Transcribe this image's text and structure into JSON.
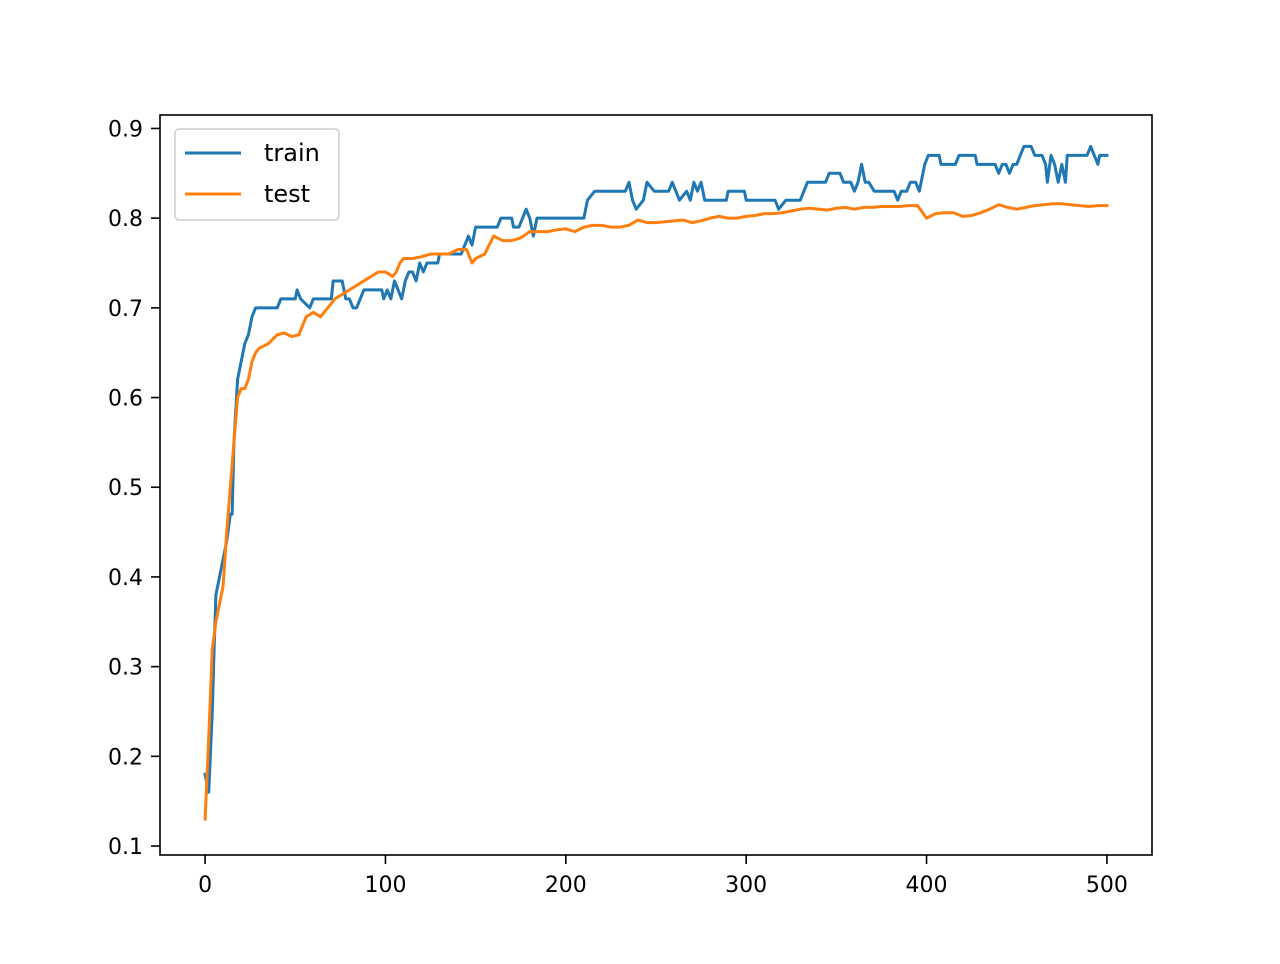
{
  "chart_data": {
    "type": "line",
    "title": "",
    "xlabel": "",
    "ylabel": "",
    "xlim": [
      -25,
      525
    ],
    "ylim": [
      0.09,
      0.915
    ],
    "x_ticks": [
      0,
      100,
      200,
      300,
      400,
      500
    ],
    "y_ticks": [
      0.1,
      0.2,
      0.3,
      0.4,
      0.5,
      0.6,
      0.7,
      0.8,
      0.9
    ],
    "x_tick_labels": [
      "0",
      "100",
      "200",
      "300",
      "400",
      "500"
    ],
    "y_tick_labels": [
      "0.1",
      "0.2",
      "0.3",
      "0.4",
      "0.5",
      "0.6",
      "0.7",
      "0.8",
      "0.9"
    ],
    "grid": false,
    "legend": {
      "position": "top-left"
    },
    "series": [
      {
        "name": "train",
        "color": "#1f77b4",
        "points": [
          [
            0,
            0.18
          ],
          [
            2,
            0.16
          ],
          [
            4,
            0.25
          ],
          [
            5,
            0.32
          ],
          [
            6,
            0.38
          ],
          [
            8,
            0.4
          ],
          [
            10,
            0.42
          ],
          [
            12,
            0.44
          ],
          [
            14,
            0.47
          ],
          [
            15,
            0.47
          ],
          [
            16,
            0.55
          ],
          [
            18,
            0.62
          ],
          [
            20,
            0.64
          ],
          [
            22,
            0.66
          ],
          [
            24,
            0.67
          ],
          [
            26,
            0.69
          ],
          [
            28,
            0.7
          ],
          [
            40,
            0.7
          ],
          [
            42,
            0.71
          ],
          [
            50,
            0.71
          ],
          [
            51,
            0.72
          ],
          [
            53,
            0.71
          ],
          [
            58,
            0.7
          ],
          [
            60,
            0.71
          ],
          [
            70,
            0.71
          ],
          [
            71,
            0.73
          ],
          [
            76,
            0.73
          ],
          [
            78,
            0.71
          ],
          [
            80,
            0.71
          ],
          [
            82,
            0.7
          ],
          [
            84,
            0.7
          ],
          [
            86,
            0.71
          ],
          [
            88,
            0.72
          ],
          [
            98,
            0.72
          ],
          [
            99,
            0.71
          ],
          [
            101,
            0.72
          ],
          [
            103,
            0.71
          ],
          [
            105,
            0.73
          ],
          [
            107,
            0.72
          ],
          [
            109,
            0.71
          ],
          [
            111,
            0.73
          ],
          [
            113,
            0.74
          ],
          [
            115,
            0.74
          ],
          [
            117,
            0.73
          ],
          [
            119,
            0.75
          ],
          [
            121,
            0.74
          ],
          [
            123,
            0.75
          ],
          [
            129,
            0.75
          ],
          [
            130,
            0.76
          ],
          [
            142,
            0.76
          ],
          [
            144,
            0.77
          ],
          [
            146,
            0.78
          ],
          [
            148,
            0.77
          ],
          [
            150,
            0.79
          ],
          [
            162,
            0.79
          ],
          [
            164,
            0.8
          ],
          [
            170,
            0.8
          ],
          [
            171,
            0.79
          ],
          [
            174,
            0.79
          ],
          [
            176,
            0.8
          ],
          [
            178,
            0.81
          ],
          [
            180,
            0.8
          ],
          [
            182,
            0.78
          ],
          [
            184,
            0.8
          ],
          [
            210,
            0.8
          ],
          [
            212,
            0.82
          ],
          [
            216,
            0.83
          ],
          [
            233,
            0.83
          ],
          [
            235,
            0.84
          ],
          [
            237,
            0.82
          ],
          [
            239,
            0.81
          ],
          [
            243,
            0.82
          ],
          [
            245,
            0.84
          ],
          [
            249,
            0.83
          ],
          [
            257,
            0.83
          ],
          [
            259,
            0.84
          ],
          [
            261,
            0.83
          ],
          [
            263,
            0.82
          ],
          [
            267,
            0.83
          ],
          [
            269,
            0.82
          ],
          [
            271,
            0.84
          ],
          [
            273,
            0.83
          ],
          [
            275,
            0.84
          ],
          [
            277,
            0.82
          ],
          [
            289,
            0.82
          ],
          [
            290,
            0.83
          ],
          [
            299,
            0.83
          ],
          [
            300,
            0.82
          ],
          [
            316,
            0.82
          ],
          [
            318,
            0.81
          ],
          [
            322,
            0.82
          ],
          [
            330,
            0.82
          ],
          [
            332,
            0.83
          ],
          [
            334,
            0.84
          ],
          [
            344,
            0.84
          ],
          [
            346,
            0.85
          ],
          [
            352,
            0.85
          ],
          [
            354,
            0.84
          ],
          [
            358,
            0.84
          ],
          [
            360,
            0.83
          ],
          [
            362,
            0.84
          ],
          [
            364,
            0.86
          ],
          [
            366,
            0.84
          ],
          [
            368,
            0.84
          ],
          [
            371,
            0.83
          ],
          [
            382,
            0.83
          ],
          [
            384,
            0.82
          ],
          [
            386,
            0.83
          ],
          [
            389,
            0.83
          ],
          [
            391,
            0.84
          ],
          [
            394,
            0.84
          ],
          [
            396,
            0.83
          ],
          [
            397,
            0.84
          ],
          [
            399,
            0.86
          ],
          [
            401,
            0.87
          ],
          [
            407,
            0.87
          ],
          [
            408,
            0.86
          ],
          [
            416,
            0.86
          ],
          [
            418,
            0.87
          ],
          [
            427,
            0.87
          ],
          [
            428,
            0.86
          ],
          [
            438,
            0.86
          ],
          [
            440,
            0.85
          ],
          [
            442,
            0.86
          ],
          [
            444,
            0.86
          ],
          [
            446,
            0.85
          ],
          [
            448,
            0.86
          ],
          [
            450,
            0.86
          ],
          [
            452,
            0.87
          ],
          [
            454,
            0.88
          ],
          [
            458,
            0.88
          ],
          [
            460,
            0.87
          ],
          [
            464,
            0.87
          ],
          [
            466,
            0.86
          ],
          [
            467,
            0.84
          ],
          [
            469,
            0.87
          ],
          [
            471,
            0.86
          ],
          [
            473,
            0.84
          ],
          [
            475,
            0.86
          ],
          [
            477,
            0.84
          ],
          [
            478,
            0.87
          ],
          [
            489,
            0.87
          ],
          [
            491,
            0.88
          ],
          [
            493,
            0.87
          ],
          [
            495,
            0.86
          ],
          [
            496,
            0.87
          ],
          [
            500,
            0.87
          ]
        ]
      },
      {
        "name": "test",
        "color": "#ff7f0e",
        "points": [
          [
            0,
            0.13
          ],
          [
            2,
            0.22
          ],
          [
            4,
            0.32
          ],
          [
            6,
            0.35
          ],
          [
            8,
            0.37
          ],
          [
            10,
            0.39
          ],
          [
            12,
            0.45
          ],
          [
            14,
            0.5
          ],
          [
            16,
            0.55
          ],
          [
            18,
            0.6
          ],
          [
            20,
            0.61
          ],
          [
            22,
            0.61
          ],
          [
            24,
            0.62
          ],
          [
            26,
            0.64
          ],
          [
            28,
            0.65
          ],
          [
            30,
            0.655
          ],
          [
            35,
            0.66
          ],
          [
            40,
            0.67
          ],
          [
            44,
            0.672
          ],
          [
            48,
            0.668
          ],
          [
            52,
            0.67
          ],
          [
            56,
            0.69
          ],
          [
            60,
            0.695
          ],
          [
            64,
            0.69
          ],
          [
            68,
            0.7
          ],
          [
            72,
            0.71
          ],
          [
            76,
            0.715
          ],
          [
            80,
            0.72
          ],
          [
            84,
            0.725
          ],
          [
            88,
            0.73
          ],
          [
            92,
            0.735
          ],
          [
            96,
            0.74
          ],
          [
            100,
            0.74
          ],
          [
            104,
            0.735
          ],
          [
            106,
            0.74
          ],
          [
            108,
            0.75
          ],
          [
            110,
            0.755
          ],
          [
            115,
            0.755
          ],
          [
            120,
            0.757
          ],
          [
            125,
            0.76
          ],
          [
            130,
            0.76
          ],
          [
            135,
            0.76
          ],
          [
            140,
            0.765
          ],
          [
            145,
            0.765
          ],
          [
            148,
            0.75
          ],
          [
            150,
            0.755
          ],
          [
            155,
            0.76
          ],
          [
            160,
            0.78
          ],
          [
            165,
            0.775
          ],
          [
            170,
            0.775
          ],
          [
            175,
            0.778
          ],
          [
            180,
            0.785
          ],
          [
            185,
            0.785
          ],
          [
            190,
            0.785
          ],
          [
            195,
            0.787
          ],
          [
            200,
            0.788
          ],
          [
            205,
            0.785
          ],
          [
            210,
            0.79
          ],
          [
            215,
            0.792
          ],
          [
            220,
            0.792
          ],
          [
            225,
            0.79
          ],
          [
            230,
            0.79
          ],
          [
            235,
            0.792
          ],
          [
            240,
            0.798
          ],
          [
            245,
            0.795
          ],
          [
            250,
            0.795
          ],
          [
            255,
            0.796
          ],
          [
            260,
            0.797
          ],
          [
            265,
            0.798
          ],
          [
            270,
            0.795
          ],
          [
            275,
            0.797
          ],
          [
            280,
            0.8
          ],
          [
            285,
            0.802
          ],
          [
            290,
            0.8
          ],
          [
            295,
            0.8
          ],
          [
            300,
            0.802
          ],
          [
            305,
            0.803
          ],
          [
            310,
            0.805
          ],
          [
            315,
            0.805
          ],
          [
            320,
            0.806
          ],
          [
            325,
            0.808
          ],
          [
            330,
            0.81
          ],
          [
            335,
            0.811
          ],
          [
            340,
            0.81
          ],
          [
            345,
            0.809
          ],
          [
            350,
            0.811
          ],
          [
            355,
            0.812
          ],
          [
            360,
            0.81
          ],
          [
            365,
            0.812
          ],
          [
            370,
            0.812
          ],
          [
            375,
            0.813
          ],
          [
            380,
            0.813
          ],
          [
            385,
            0.813
          ],
          [
            390,
            0.814
          ],
          [
            395,
            0.814
          ],
          [
            400,
            0.8
          ],
          [
            405,
            0.805
          ],
          [
            410,
            0.806
          ],
          [
            415,
            0.806
          ],
          [
            420,
            0.802
          ],
          [
            425,
            0.803
          ],
          [
            430,
            0.806
          ],
          [
            435,
            0.81
          ],
          [
            440,
            0.815
          ],
          [
            445,
            0.812
          ],
          [
            450,
            0.81
          ],
          [
            455,
            0.812
          ],
          [
            460,
            0.814
          ],
          [
            465,
            0.815
          ],
          [
            470,
            0.816
          ],
          [
            475,
            0.816
          ],
          [
            480,
            0.815
          ],
          [
            485,
            0.814
          ],
          [
            490,
            0.813
          ],
          [
            495,
            0.814
          ],
          [
            500,
            0.814
          ]
        ]
      }
    ]
  }
}
